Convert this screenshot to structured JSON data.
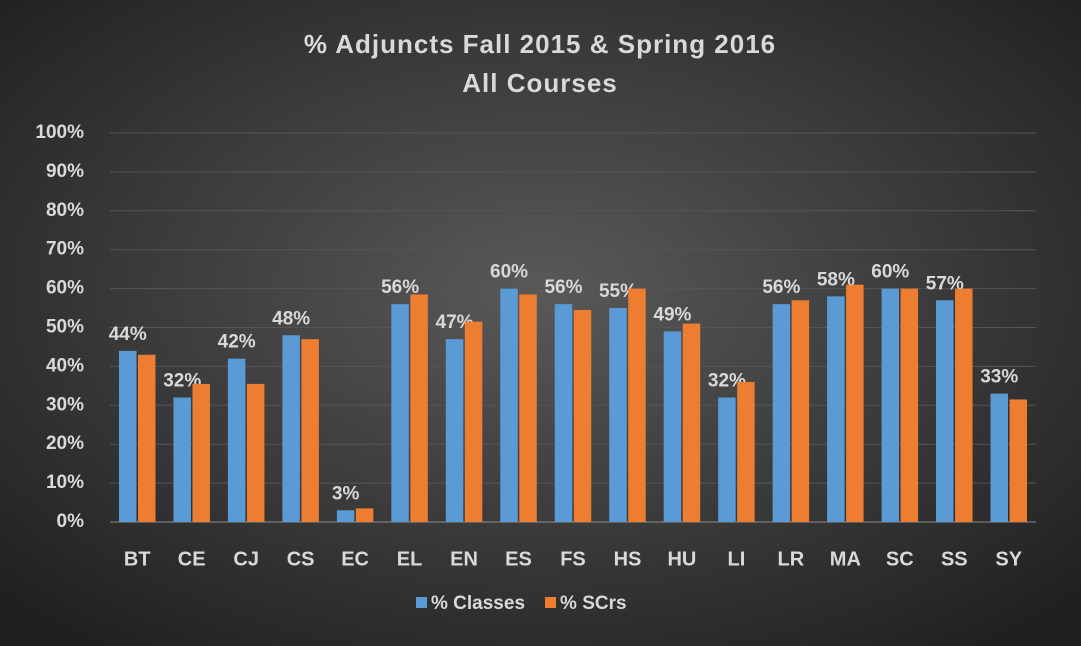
{
  "chart_data": {
    "type": "bar",
    "title": "% Adjuncts Fall 2015 & Spring 2016",
    "subtitle": "All Courses",
    "categories": [
      "BT",
      "CE",
      "CJ",
      "CS",
      "EC",
      "EL",
      "EN",
      "ES",
      "FS",
      "HS",
      "HU",
      "LI",
      "LR",
      "MA",
      "SC",
      "SS",
      "SY"
    ],
    "series": [
      {
        "name": "% Classes",
        "color": "#5b9bd5",
        "values": [
          44,
          32,
          42,
          48,
          3,
          56,
          47,
          60,
          56,
          55,
          49,
          32,
          56,
          58,
          60,
          57,
          33
        ],
        "value_labels": [
          "44%",
          "32%",
          "42%",
          "48%",
          "3%",
          "56%",
          "47%",
          "60%",
          "56%",
          "55%",
          "49%",
          "32%",
          "56%",
          "58%",
          "60%",
          "57%",
          "33%"
        ]
      },
      {
        "name": "% SCrs",
        "color": "#ed7d31",
        "values": [
          43,
          35.5,
          35.5,
          47,
          3.5,
          58.5,
          51.5,
          58.5,
          54.5,
          60,
          51,
          36,
          57,
          61,
          60,
          60,
          31.5
        ]
      }
    ],
    "ylim": [
      0,
      100
    ],
    "yticks": [
      {
        "value": 0,
        "label": "0%"
      },
      {
        "value": 10,
        "label": "10%"
      },
      {
        "value": 20,
        "label": "20%"
      },
      {
        "value": 30,
        "label": "30%"
      },
      {
        "value": 40,
        "label": "40%"
      },
      {
        "value": 50,
        "label": "50%"
      },
      {
        "value": 60,
        "label": "60%"
      },
      {
        "value": 70,
        "label": "70%"
      },
      {
        "value": 80,
        "label": "80%"
      },
      {
        "value": 90,
        "label": "90%"
      },
      {
        "value": 100,
        "label": "100%"
      }
    ],
    "grid": true,
    "legend": "bottom"
  }
}
